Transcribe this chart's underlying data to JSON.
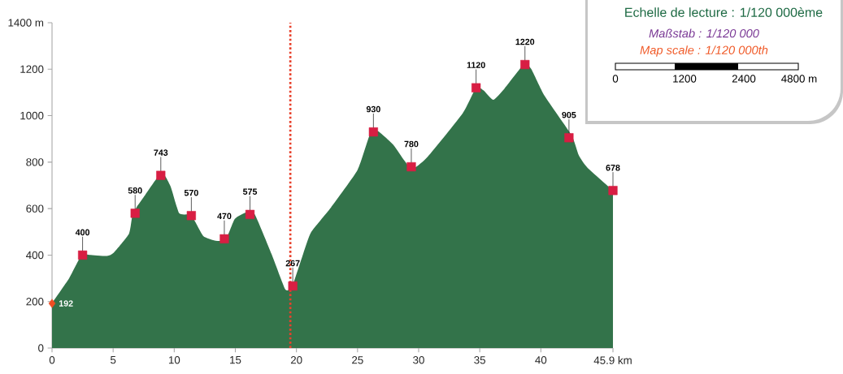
{
  "chart_data": {
    "type": "area",
    "xlim": [
      0,
      45.9
    ],
    "ylim": [
      0,
      1400
    ],
    "xticks": [
      0,
      5,
      10,
      15,
      20,
      25,
      30,
      35,
      40,
      {
        "value": 45.9,
        "label": "45.9 km"
      }
    ],
    "yticks": [
      0,
      200,
      400,
      600,
      800,
      1000,
      1200,
      {
        "value": 1400,
        "label": "1400 m"
      }
    ],
    "grid": false,
    "series": [
      {
        "color": "#33734a",
        "x": [
          0,
          1.4,
          2.4,
          3.07,
          4.5,
          5.07,
          6.3,
          6.62,
          7.5,
          8.96,
          9.7,
          10.4,
          11.3,
          11.7,
          12.4,
          13.3,
          14.2,
          14.96,
          15.96,
          16.6,
          17.96,
          19.07,
          19.5,
          19.67,
          20.55,
          21.2,
          22.8,
          25.0,
          26.0,
          26.65,
          27.9,
          29.4,
          30.75,
          33.6,
          34.7,
          35.3,
          36.1,
          37.0,
          38.6,
          39.2,
          40.3,
          42.5,
          43.1,
          43.8,
          45.9
        ],
        "values": [
          193,
          300,
          399,
          401,
          396,
          411,
          492,
          580,
          649,
          754,
          696,
          580,
          574,
          545,
          481,
          463,
          465,
          556,
          585,
          574,
          405,
          254,
          254,
          265,
          405,
          498,
          603,
          766,
          917,
          934,
          876,
          772,
          824,
          1010,
          1121,
          1109,
          1068,
          1115,
          1220,
          1202,
          1086,
          917,
          830,
          777,
          678
        ]
      },
      {
        "type": "scatter",
        "color": "#d81e43",
        "marker": "square",
        "x": [
          2.5,
          6.8,
          8.9,
          11.4,
          14.1,
          16.2,
          19.7,
          26.3,
          29.4,
          34.7,
          38.7,
          42.3,
          45.9
        ],
        "values": [
          400,
          580,
          743,
          570,
          470,
          575,
          267,
          930,
          780,
          1120,
          1220,
          905,
          678
        ],
        "value_labels": [
          "400",
          "580",
          "743",
          "570",
          "470",
          "575",
          "267",
          "930",
          "780",
          "1120",
          "1220",
          "905",
          "678"
        ]
      },
      {
        "type": "scatter",
        "color": "#f04e23",
        "marker": "diamond",
        "x": [
          0
        ],
        "values": [
          192
        ],
        "value_labels": [
          "192"
        ]
      }
    ],
    "ref_lines": [
      {
        "axis": "x",
        "value": 19.5,
        "color": "#e8412c",
        "line_style": "dotted"
      }
    ],
    "annotations": [
      "Echelle de lecture :  1/120 000ème",
      "Maßstab : 1/120 000",
      "Map scale : 1/120 000th",
      "0",
      "1200",
      "2400",
      "4800 m"
    ]
  }
}
